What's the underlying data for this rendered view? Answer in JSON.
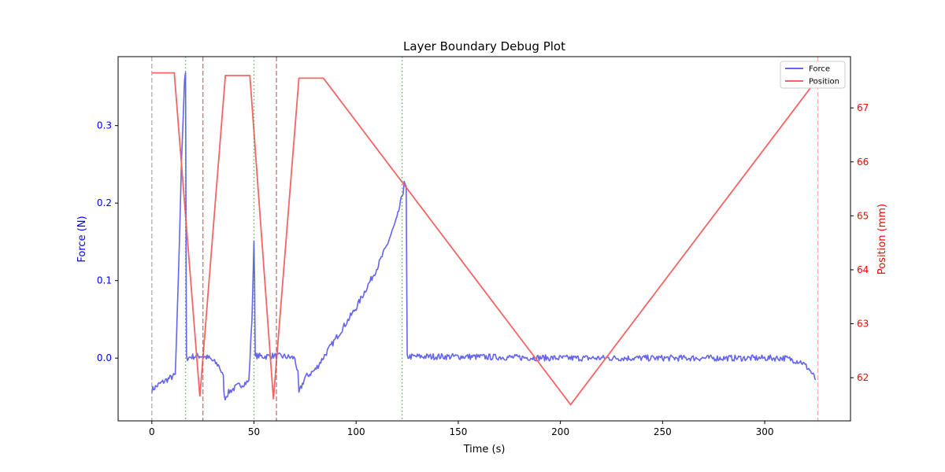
{
  "chart_data": {
    "type": "line",
    "title": "Layer Boundary Debug Plot",
    "xlabel": "Time (s)",
    "ylabel_left": "Force (N)",
    "ylabel_right": "Position (mm)",
    "xlim": [
      -16.5,
      342
    ],
    "ylim_left": [
      -0.081,
      0.389
    ],
    "ylim_right": [
      61.2,
      67.95
    ],
    "x_ticks": [
      0,
      50,
      100,
      150,
      200,
      250,
      300
    ],
    "y_left_ticks": [
      0.0,
      0.1,
      0.2,
      0.3
    ],
    "y_right_ticks": [
      62,
      63,
      64,
      65,
      66,
      67
    ],
    "grid": false,
    "legend_position": "top-right",
    "colors": {
      "force": "#6464f0",
      "position": "#f46464",
      "left_axis": "#0000ff",
      "right_axis": "#ff0000",
      "grey_line": "#999999",
      "green_line": "#339933",
      "brown_line": "#aa5555",
      "pink_line": "#ff9999"
    },
    "series": [
      {
        "name": "Force",
        "axis": "left",
        "x": [
          0,
          4,
          8,
          11.5,
          13,
          14.5,
          16,
          16.5,
          16.8,
          17,
          20,
          24,
          28,
          33,
          35,
          35.5,
          38,
          42,
          46,
          47.5,
          49,
          50,
          50.3,
          50.6,
          51,
          55,
          60,
          65,
          70,
          71.5,
          72,
          75,
          80,
          85,
          90,
          95,
          100,
          105,
          110,
          115,
          120,
          123,
          123.5,
          124.5,
          125,
          150,
          200,
          250,
          300,
          310,
          318,
          322,
          325
        ],
        "y": [
          -0.041,
          -0.033,
          -0.027,
          -0.022,
          0.1,
          0.25,
          0.36,
          0.37,
          0.1,
          0.0,
          0.002,
          0.003,
          0.0,
          -0.01,
          -0.025,
          -0.052,
          -0.043,
          -0.036,
          -0.032,
          -0.03,
          0.05,
          0.148,
          0.1,
          0.0,
          0.003,
          0.002,
          0.003,
          0.002,
          0.0,
          -0.02,
          -0.045,
          -0.025,
          -0.015,
          0.005,
          0.025,
          0.045,
          0.065,
          0.09,
          0.115,
          0.145,
          0.18,
          0.215,
          0.225,
          0.22,
          0.002,
          0.002,
          0.0,
          0.0,
          0.0,
          0.0,
          -0.005,
          -0.015,
          -0.028
        ],
        "noise": 0.004
      },
      {
        "name": "Position",
        "axis": "right",
        "x": [
          0,
          11,
          23.5,
          36,
          48,
          59.5,
          72,
          84,
          205,
          326
        ],
        "y": [
          67.65,
          67.65,
          61.65,
          67.6,
          67.6,
          61.6,
          67.55,
          67.55,
          61.5,
          67.55
        ]
      }
    ],
    "vertical_lines": [
      {
        "x": 0,
        "style": "dashed",
        "color": "grey"
      },
      {
        "x": 16.5,
        "style": "dotted",
        "color": "green"
      },
      {
        "x": 25,
        "style": "dashed",
        "color": "brown"
      },
      {
        "x": 50,
        "style": "dotted",
        "color": "green"
      },
      {
        "x": 61,
        "style": "dashed",
        "color": "brown"
      },
      {
        "x": 122.5,
        "style": "dotted",
        "color": "green"
      },
      {
        "x": 326,
        "style": "dashed",
        "color": "pink"
      }
    ]
  }
}
